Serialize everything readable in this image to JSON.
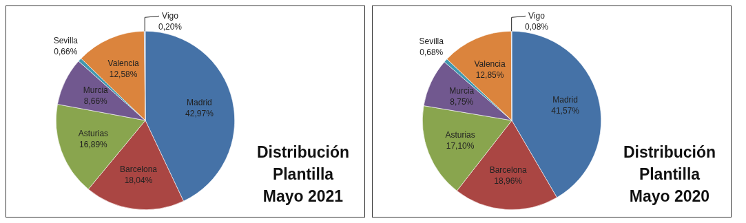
{
  "chart_data": [
    {
      "type": "pie",
      "title": "Distribución Plantilla Mayo 2021",
      "categories": [
        "Madrid",
        "Barcelona",
        "Asturias",
        "Murcia",
        "Sevilla",
        "Valencia",
        "Vigo"
      ],
      "values": [
        42.97,
        18.04,
        16.89,
        8.66,
        0.66,
        12.58,
        0.2
      ],
      "value_labels": [
        "42,97%",
        "18,04%",
        "16,89%",
        "8,66%",
        "0,66%",
        "12,58%",
        "0,20%"
      ],
      "colors": [
        "#4572a7",
        "#aa4643",
        "#89a54e",
        "#71588f",
        "#4198af",
        "#db843d",
        "#93a9cf"
      ],
      "legend": false
    },
    {
      "type": "pie",
      "title": "Distribución Plantilla Mayo 2020",
      "categories": [
        "Madrid",
        "Barcelona",
        "Asturias",
        "Murcia",
        "Sevilla",
        "Valencia",
        "Vigo"
      ],
      "values": [
        41.57,
        18.96,
        17.1,
        8.75,
        0.68,
        12.85,
        0.08
      ],
      "value_labels": [
        "41,57%",
        "18,96%",
        "17,10%",
        "8,75%",
        "0,68%",
        "12,85%",
        "0,08%"
      ],
      "colors": [
        "#4572a7",
        "#aa4643",
        "#89a54e",
        "#71588f",
        "#4198af",
        "#db843d",
        "#93a9cf"
      ],
      "legend": false
    }
  ]
}
